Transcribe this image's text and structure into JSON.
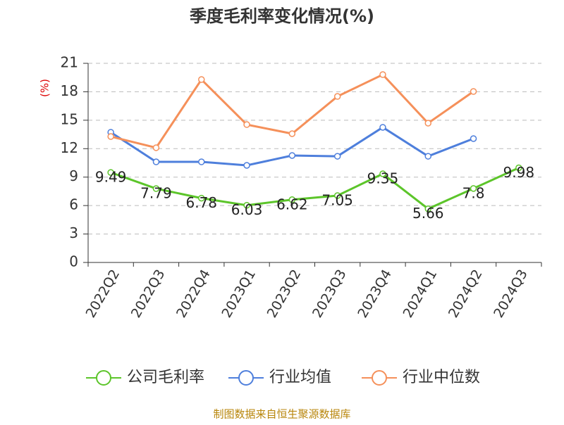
{
  "chart_data": {
    "type": "line",
    "title": "季度毛利率变化情况(%)",
    "y_label": "(%)",
    "source": "制图数据来自恒生聚源数据库",
    "categories": [
      "2022Q2",
      "2022Q3",
      "2022Q4",
      "2023Q1",
      "2023Q2",
      "2023Q3",
      "2023Q4",
      "2024Q1",
      "2024Q2",
      "2024Q3"
    ],
    "series": [
      {
        "name": "公司毛利率",
        "color": "#5cc52a",
        "values": [
          9.49,
          7.79,
          6.78,
          6.03,
          6.62,
          7.05,
          9.35,
          5.66,
          7.8,
          9.98
        ],
        "data_labels": true
      },
      {
        "name": "行业均值",
        "color": "#4e7fdc",
        "values": [
          13.73,
          10.61,
          10.61,
          10.24,
          11.28,
          11.2,
          14.25,
          11.2,
          13.06,
          null
        ]
      },
      {
        "name": "行业中位数",
        "color": "#f5905a",
        "values": [
          13.28,
          12.1,
          19.29,
          14.54,
          13.58,
          17.51,
          19.81,
          14.69,
          18.03,
          null
        ]
      }
    ],
    "ylim": [
      0,
      21
    ],
    "yticks": [
      0,
      3,
      6,
      9,
      12,
      15,
      18,
      21
    ],
    "grid": true
  }
}
